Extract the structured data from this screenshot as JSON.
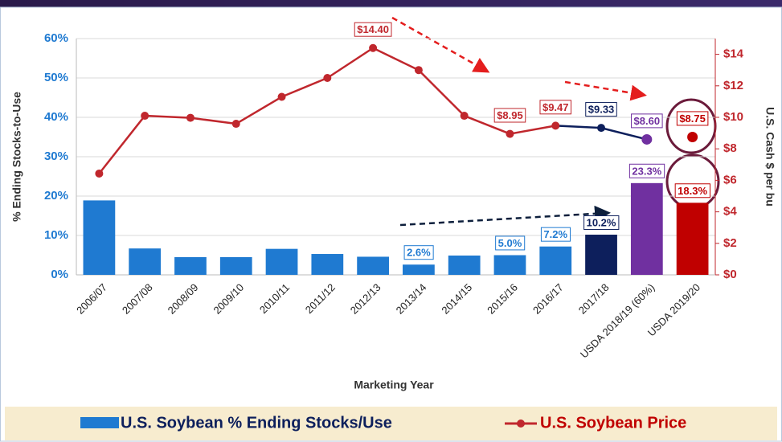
{
  "chart_data": {
    "type": "bar_line",
    "x_label": "Marketing Year",
    "y_label": "% Ending Stocks-to-Use",
    "y2_label": "U.S. Cash $ per bu",
    "categories": [
      "2006/07",
      "2007/08",
      "2008/09",
      "2009/10",
      "2010/11",
      "2011/12",
      "2012/13",
      "2013/14",
      "2014/15",
      "2015/16",
      "2016/17",
      "2017/18",
      "USDA 2018/19 (60%)",
      "USDA 2019/20"
    ],
    "ylim": [
      0,
      60
    ],
    "yticks": [
      {
        "value": 0,
        "label": "0%"
      },
      {
        "value": 10,
        "label": "10%"
      },
      {
        "value": 20,
        "label": "20%"
      },
      {
        "value": 30,
        "label": "30%"
      },
      {
        "value": 40,
        "label": "40%"
      },
      {
        "value": 50,
        "label": "50%"
      },
      {
        "value": 60,
        "label": "60%"
      }
    ],
    "y2lim": [
      0,
      15
    ],
    "y2ticks": [
      {
        "value": 0,
        "label": "$0"
      },
      {
        "value": 2,
        "label": "$2"
      },
      {
        "value": 4,
        "label": "$4"
      },
      {
        "value": 6,
        "label": "$6"
      },
      {
        "value": 8,
        "label": "$8"
      },
      {
        "value": 10,
        "label": "$10"
      },
      {
        "value": 12,
        "label": "$12"
      },
      {
        "value": 14,
        "label": "$14"
      }
    ],
    "grid": true,
    "series": [
      {
        "name": "U.S. Soybean % Ending Stocks/Use",
        "type": "bar",
        "color": "#1f7ad1",
        "point_colors": [
          "#1f7ad1",
          "#1f7ad1",
          "#1f7ad1",
          "#1f7ad1",
          "#1f7ad1",
          "#1f7ad1",
          "#1f7ad1",
          "#1f7ad1",
          "#1f7ad1",
          "#1f7ad1",
          "#1f7ad1",
          "#0d1f5c",
          "#7030a0",
          "#c00000"
        ],
        "values": [
          18.9,
          6.7,
          4.5,
          4.5,
          6.6,
          5.3,
          4.6,
          2.6,
          4.9,
          5.0,
          7.2,
          10.2,
          23.3,
          18.3
        ],
        "value_labels": [
          null,
          null,
          null,
          null,
          null,
          null,
          null,
          "2.6%",
          null,
          "5.0%",
          "7.2%",
          "10.2%",
          "23.3%",
          "18.3%"
        ]
      },
      {
        "name": "U.S. Soybean Price",
        "type": "line",
        "axis": "y2",
        "color": "#c0272d",
        "point_colors": [
          "#c0272d",
          "#c0272d",
          "#c0272d",
          "#c0272d",
          "#c0272d",
          "#c0272d",
          "#c0272d",
          "#c0272d",
          "#c0272d",
          "#c0272d",
          "#c0272d",
          "#0d1f5c",
          "#7030a0",
          "#c00000"
        ],
        "segment_colors": [
          "#c0272d",
          "#c0272d",
          "#c0272d",
          "#c0272d",
          "#c0272d",
          "#c0272d",
          "#c0272d",
          "#c0272d",
          "#c0272d",
          "#c0272d",
          "#0d1f5c",
          "#0d1f5c",
          null
        ],
        "values": [
          6.43,
          10.1,
          9.97,
          9.59,
          11.3,
          12.5,
          14.4,
          13.0,
          10.1,
          8.95,
          9.47,
          9.33,
          8.6,
          8.75
        ],
        "value_labels": [
          null,
          null,
          null,
          null,
          null,
          null,
          "$14.40",
          null,
          null,
          "$8.95",
          "$9.47",
          "$9.33",
          "$8.60",
          "$8.75"
        ]
      }
    ]
  }
}
